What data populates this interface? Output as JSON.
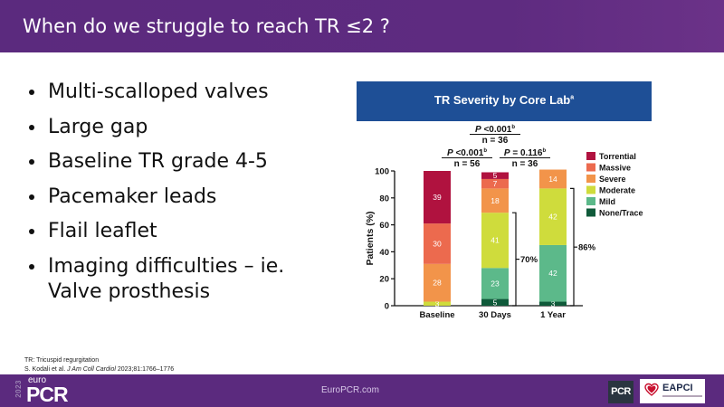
{
  "header": {
    "title": "When do we struggle to reach TR ≤2 ?"
  },
  "bullets": [
    {
      "line1": "Multi-scalloped valves",
      "line2": ""
    },
    {
      "line1": "Large gap",
      "line2": ""
    },
    {
      "line1": "Baseline TR grade 4-5",
      "line2": ""
    },
    {
      "line1": "Pacemaker leads",
      "line2": ""
    },
    {
      "line1": "Flail leaflet",
      "line2": ""
    },
    {
      "line1": "Imaging difficulties – ie.",
      "line2": "Valve prosthesis"
    }
  ],
  "chart_data": {
    "type": "bar",
    "stacked": true,
    "title": "TR Severity by Core Lab",
    "title_superscript": "a",
    "ylabel": "Patients (%)",
    "xlabel": "",
    "ylim": [
      0,
      100
    ],
    "yticks": [
      0,
      20,
      40,
      60,
      80,
      100
    ],
    "categories": [
      "Baseline",
      "30 Days",
      "1 Year"
    ],
    "series": [
      {
        "name": "None/Trace",
        "color": "#0f5a3a",
        "values": [
          0,
          5,
          3
        ],
        "labels": [
          "",
          "5",
          "3"
        ]
      },
      {
        "name": "Mild",
        "color": "#5cb98a",
        "values": [
          0,
          23,
          42
        ],
        "labels": [
          "",
          "23",
          "42"
        ]
      },
      {
        "name": "Moderate",
        "color": "#cfdc3c",
        "values": [
          3,
          41,
          42
        ],
        "labels": [
          "3",
          "41",
          "42"
        ]
      },
      {
        "name": "Severe",
        "color": "#f2944a",
        "values": [
          28,
          18,
          14
        ],
        "labels": [
          "28",
          "18",
          "14"
        ]
      },
      {
        "name": "Massive",
        "color": "#ec6a4e",
        "values": [
          30,
          7,
          0
        ],
        "labels": [
          "30",
          "7",
          ""
        ]
      },
      {
        "name": "Torrential",
        "color": "#b0123f",
        "values": [
          39,
          5,
          0
        ],
        "labels": [
          "39",
          "5",
          ""
        ]
      }
    ],
    "legend": {
      "position": "right",
      "order": [
        "Torrential",
        "Massive",
        "Severe",
        "Moderate",
        "Mild",
        "None/Trace"
      ]
    },
    "comparisons": [
      {
        "p": "P <0.001",
        "sup": "b",
        "n": "n = 56",
        "between": [
          "Baseline",
          "30 Days"
        ]
      },
      {
        "p": "P = 0.116",
        "sup": "b",
        "n": "n = 36",
        "between": [
          "30 Days",
          "1 Year"
        ]
      },
      {
        "p": "P <0.001",
        "sup": "b",
        "n": "n = 36",
        "between": [
          "Baseline",
          "1 Year"
        ]
      }
    ],
    "brackets": [
      {
        "category": "30 Days",
        "label": "70%",
        "from": 0,
        "to": 69
      },
      {
        "category": "1 Year",
        "label": "86%",
        "from": 0,
        "to": 87
      }
    ]
  },
  "footnote": {
    "line1": "TR: Tricuspid regurgitation",
    "line2_prefix": "S. Kodali et al. ",
    "line2_journal": "J Am Coll Cardiol",
    "line2_suffix": " 2023;81:1766–1776"
  },
  "footer": {
    "url": "EuroPCR.com",
    "logo_year": "2023",
    "logo_euro": "euro",
    "logo_pcr": "PCR",
    "badge_pcr": "PCR",
    "badge_eapci": "EAPCI"
  },
  "colors": {
    "header_bg": "#5b2a7e",
    "chart_banner": "#1e4f96"
  }
}
